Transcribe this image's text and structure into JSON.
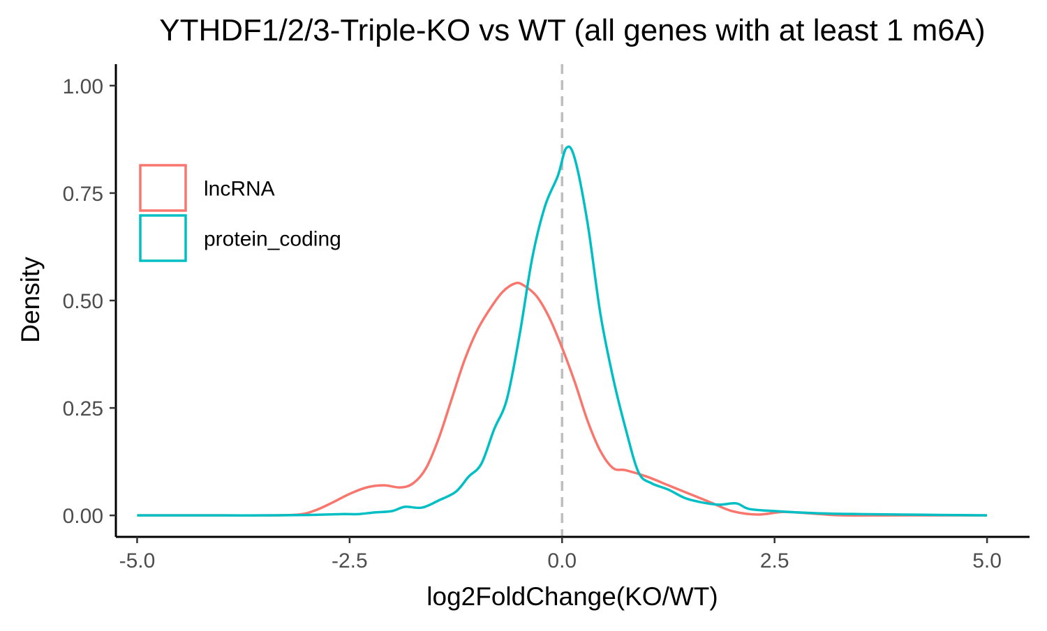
{
  "chart_data": {
    "type": "line",
    "title": "YTHDF1/2/3-Triple-KO vs WT (all genes with at least 1 m6A)",
    "xlabel": "log2FoldChange(KO/WT)",
    "ylabel": "Density",
    "xlim": [
      -5.25,
      5.5
    ],
    "ylim": [
      -0.05,
      1.05
    ],
    "x_ticks": [
      -5.0,
      -2.5,
      0.0,
      2.5,
      5.0
    ],
    "x_tick_labels": [
      "-5.0",
      "-2.5",
      "0.0",
      "2.5",
      "5.0"
    ],
    "y_ticks": [
      0.0,
      0.25,
      0.5,
      0.75,
      1.0
    ],
    "y_tick_labels": [
      "0.00",
      "0.25",
      "0.50",
      "0.75",
      "1.00"
    ],
    "vline": {
      "x": 0.0,
      "style": "dashed",
      "color": "#BEBEBE"
    },
    "grid": false,
    "legend_position": "left",
    "series": [
      {
        "name": "lncRNA",
        "color": "#F8766D",
        "points": [
          [
            -5.0,
            0.0
          ],
          [
            -4.0,
            0.0
          ],
          [
            -3.5,
            0.0
          ],
          [
            -3.1,
            0.002
          ],
          [
            -2.9,
            0.012
          ],
          [
            -2.7,
            0.03
          ],
          [
            -2.5,
            0.05
          ],
          [
            -2.3,
            0.065
          ],
          [
            -2.1,
            0.07
          ],
          [
            -1.9,
            0.065
          ],
          [
            -1.75,
            0.075
          ],
          [
            -1.6,
            0.11
          ],
          [
            -1.45,
            0.18
          ],
          [
            -1.3,
            0.27
          ],
          [
            -1.15,
            0.36
          ],
          [
            -1.0,
            0.43
          ],
          [
            -0.85,
            0.48
          ],
          [
            -0.7,
            0.52
          ],
          [
            -0.55,
            0.54
          ],
          [
            -0.45,
            0.535
          ],
          [
            -0.3,
            0.51
          ],
          [
            -0.15,
            0.46
          ],
          [
            0.0,
            0.39
          ],
          [
            0.15,
            0.31
          ],
          [
            0.3,
            0.22
          ],
          [
            0.45,
            0.15
          ],
          [
            0.6,
            0.11
          ],
          [
            0.75,
            0.105
          ],
          [
            1.0,
            0.09
          ],
          [
            1.25,
            0.07
          ],
          [
            1.5,
            0.05
          ],
          [
            1.75,
            0.03
          ],
          [
            2.0,
            0.01
          ],
          [
            2.3,
            0.002
          ],
          [
            2.6,
            0.008
          ],
          [
            2.9,
            0.005
          ],
          [
            3.3,
            0.0
          ],
          [
            4.0,
            0.0
          ],
          [
            5.0,
            0.0
          ]
        ]
      },
      {
        "name": "protein_coding",
        "color": "#00BFC4",
        "points": [
          [
            -5.0,
            0.0
          ],
          [
            -4.5,
            0.0
          ],
          [
            -4.0,
            0.0
          ],
          [
            -3.5,
            0.0
          ],
          [
            -3.0,
            0.001
          ],
          [
            -2.6,
            0.003
          ],
          [
            -2.4,
            0.003
          ],
          [
            -2.2,
            0.007
          ],
          [
            -2.0,
            0.01
          ],
          [
            -1.85,
            0.02
          ],
          [
            -1.65,
            0.018
          ],
          [
            -1.45,
            0.035
          ],
          [
            -1.25,
            0.055
          ],
          [
            -1.1,
            0.09
          ],
          [
            -0.95,
            0.12
          ],
          [
            -0.8,
            0.2
          ],
          [
            -0.65,
            0.27
          ],
          [
            -0.5,
            0.42
          ],
          [
            -0.35,
            0.6
          ],
          [
            -0.2,
            0.72
          ],
          [
            -0.05,
            0.79
          ],
          [
            0.05,
            0.855
          ],
          [
            0.15,
            0.83
          ],
          [
            0.3,
            0.68
          ],
          [
            0.45,
            0.47
          ],
          [
            0.6,
            0.32
          ],
          [
            0.75,
            0.2
          ],
          [
            0.9,
            0.1
          ],
          [
            1.05,
            0.075
          ],
          [
            1.25,
            0.06
          ],
          [
            1.45,
            0.04
          ],
          [
            1.65,
            0.03
          ],
          [
            1.85,
            0.025
          ],
          [
            2.05,
            0.028
          ],
          [
            2.2,
            0.015
          ],
          [
            2.5,
            0.01
          ],
          [
            3.0,
            0.005
          ],
          [
            3.5,
            0.003
          ],
          [
            4.0,
            0.002
          ],
          [
            4.5,
            0.001
          ],
          [
            5.0,
            0.0
          ]
        ]
      }
    ]
  }
}
